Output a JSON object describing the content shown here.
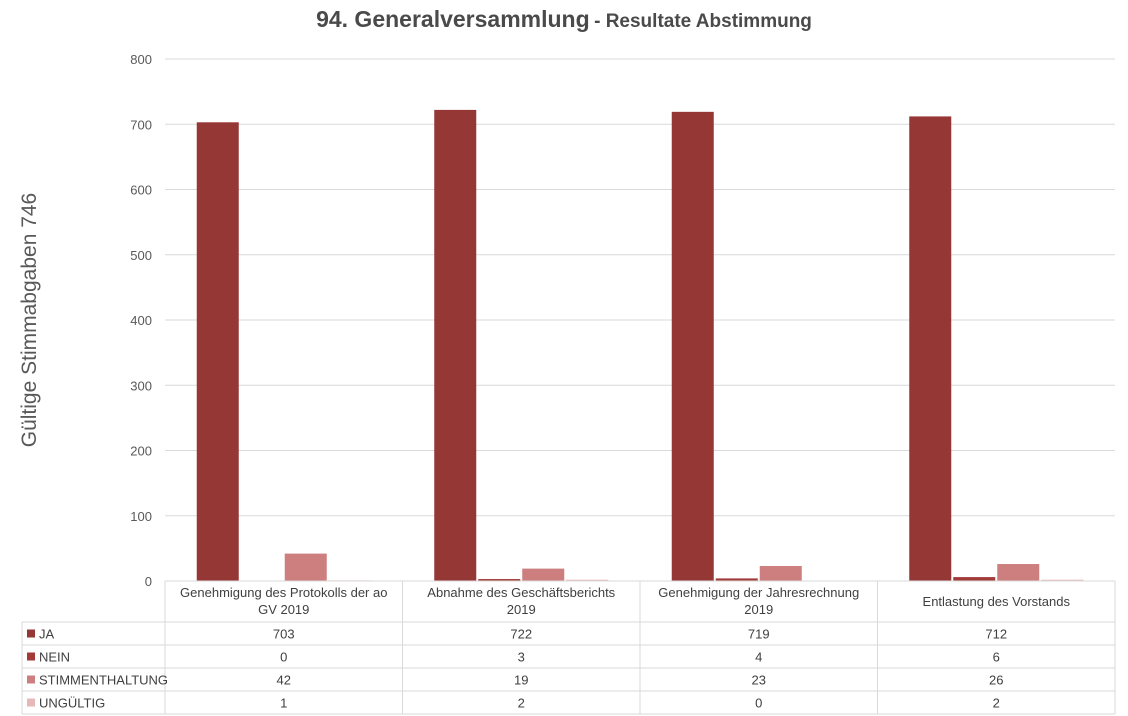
{
  "chart_data": {
    "type": "bar",
    "title": "94. Generalversammlung",
    "subtitle": "- Resultate Abstimmung",
    "ylabel": "Gültige Stimmabgaben 746",
    "ylim": [
      0,
      800
    ],
    "yticks": [
      "0",
      "100",
      "200",
      "300",
      "400",
      "500",
      "600",
      "700",
      "800"
    ],
    "categories": [
      [
        "Genehmigung des Protokolls der ao",
        "GV 2019"
      ],
      [
        "Abnahme des Geschäftsberichts",
        "2019"
      ],
      [
        "Genehmigung der Jahresrechnung",
        "2019"
      ],
      [
        "Entlastung des Vorstands"
      ]
    ],
    "series": [
      {
        "name": "JA",
        "color": "#953735",
        "values": [
          703,
          722,
          719,
          712
        ]
      },
      {
        "name": "NEIN",
        "color": "#a23b38",
        "values": [
          0,
          3,
          4,
          6
        ]
      },
      {
        "name": "STIMMENTHALTUNG",
        "color": "#cd7f7f",
        "values": [
          42,
          19,
          23,
          26
        ]
      },
      {
        "name": "UNGÜLTIG",
        "color": "#e6b9b8",
        "values": [
          1,
          2,
          0,
          2
        ]
      }
    ],
    "grid": true,
    "legend": "data-table"
  }
}
